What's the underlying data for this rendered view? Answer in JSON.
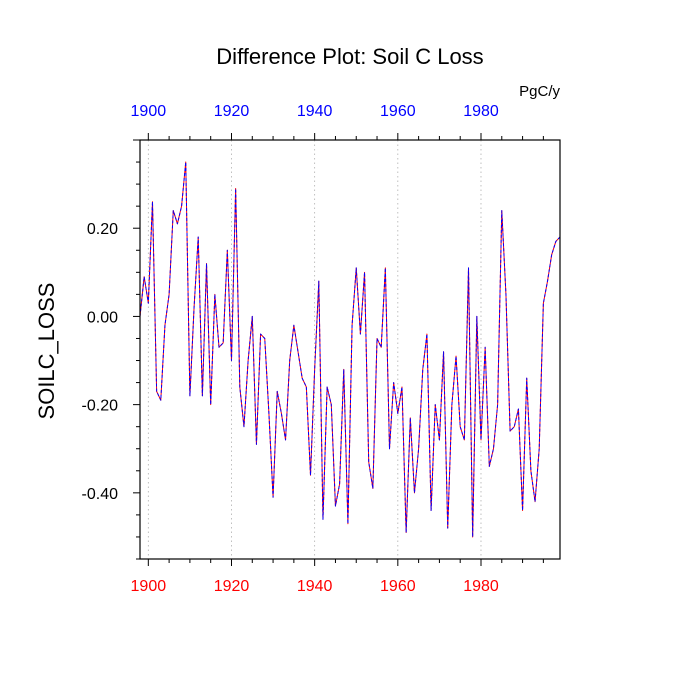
{
  "chart_data": {
    "type": "line",
    "title": "Difference Plot: Soil C Loss",
    "units": "PgC/y",
    "ylabel": "SOILC_LOSS",
    "xlabel": "",
    "xlim": [
      1898,
      1999
    ],
    "ylim": [
      -0.55,
      0.4
    ],
    "yticks": [
      -0.4,
      -0.2,
      0.0,
      0.2
    ],
    "ytick_labels": [
      "-0.40",
      "-0.20",
      "0.00",
      "0.20"
    ],
    "xticks": [
      1900,
      1920,
      1940,
      1960,
      1980
    ],
    "xtick_labels_bottom": [
      "1900",
      "1920",
      "1940",
      "1960",
      "1980"
    ],
    "xtick_labels_top": [
      "1900",
      "1920",
      "1940",
      "1960",
      "1980"
    ],
    "grid": "vertical dotted at major x ticks",
    "colors": {
      "line_a": "#ff0000",
      "line_b": "#0000ff",
      "bottom_axis_labels": "#ff0000",
      "top_axis_labels": "#0000ff",
      "grid": "#b0b0b0"
    },
    "series": [
      {
        "name": "SOILC_LOSS",
        "x": [
          1898,
          1899,
          1900,
          1901,
          1902,
          1903,
          1904,
          1905,
          1906,
          1907,
          1908,
          1909,
          1910,
          1911,
          1912,
          1913,
          1914,
          1915,
          1916,
          1917,
          1918,
          1919,
          1920,
          1921,
          1922,
          1923,
          1924,
          1925,
          1926,
          1927,
          1928,
          1929,
          1930,
          1931,
          1932,
          1933,
          1934,
          1935,
          1936,
          1937,
          1938,
          1939,
          1940,
          1941,
          1942,
          1943,
          1944,
          1945,
          1946,
          1947,
          1948,
          1949,
          1950,
          1951,
          1952,
          1953,
          1954,
          1955,
          1956,
          1957,
          1958,
          1959,
          1960,
          1961,
          1962,
          1963,
          1964,
          1965,
          1966,
          1967,
          1968,
          1969,
          1970,
          1971,
          1972,
          1973,
          1974,
          1975,
          1976,
          1977,
          1978,
          1979,
          1980,
          1981,
          1982,
          1983,
          1984,
          1985,
          1986,
          1987,
          1988,
          1989,
          1990,
          1991,
          1992,
          1993,
          1994,
          1995,
          1996,
          1997,
          1998,
          1999
        ],
        "values": [
          0.0,
          0.09,
          0.03,
          0.26,
          -0.17,
          -0.19,
          -0.02,
          0.05,
          0.24,
          0.21,
          0.25,
          0.35,
          -0.18,
          0.02,
          0.18,
          -0.18,
          0.12,
          -0.2,
          0.05,
          -0.07,
          -0.06,
          0.15,
          -0.1,
          0.29,
          -0.16,
          -0.25,
          -0.1,
          0.0,
          -0.29,
          -0.04,
          -0.05,
          -0.22,
          -0.41,
          -0.17,
          -0.22,
          -0.28,
          -0.1,
          -0.02,
          -0.08,
          -0.14,
          -0.16,
          -0.36,
          -0.12,
          0.08,
          -0.46,
          -0.16,
          -0.2,
          -0.43,
          -0.38,
          -0.12,
          -0.47,
          -0.02,
          0.11,
          -0.04,
          0.1,
          -0.33,
          -0.39,
          -0.05,
          -0.07,
          0.11,
          -0.3,
          -0.15,
          -0.22,
          -0.16,
          -0.49,
          -0.23,
          -0.4,
          -0.3,
          -0.12,
          -0.04,
          -0.44,
          -0.2,
          -0.28,
          -0.08,
          -0.48,
          -0.2,
          -0.09,
          -0.25,
          -0.28,
          0.11,
          -0.5,
          0.0,
          -0.28,
          -0.07,
          -0.34,
          -0.3,
          -0.2,
          0.24,
          0.05,
          -0.26,
          -0.25,
          -0.21,
          -0.44,
          -0.14,
          -0.35,
          -0.42,
          -0.3,
          0.03,
          0.08,
          0.14,
          0.17,
          0.18
        ]
      }
    ]
  }
}
